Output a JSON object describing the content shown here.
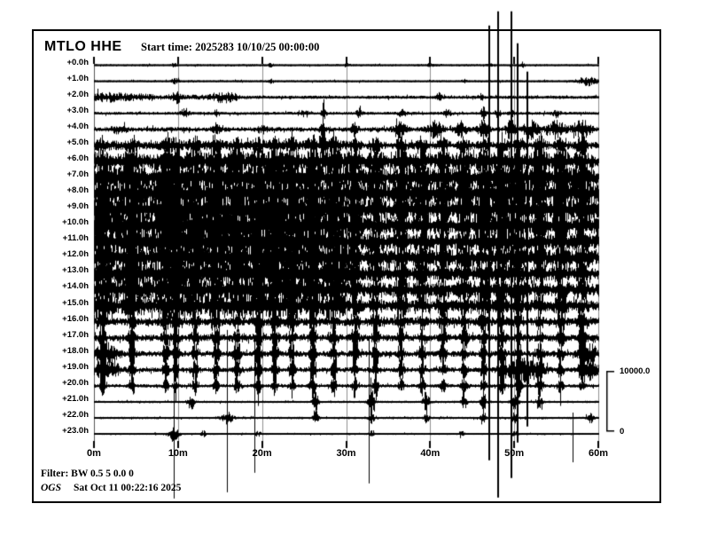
{
  "header": {
    "station": "MTLO HHE",
    "start_time": "Start time: 2025283 10/10/25 00:00:00"
  },
  "footer": {
    "filter": "Filter: BW 0.5 5 0.0 0",
    "agency": "OGS",
    "generated": "Sat Oct 11 00:22:16 2025"
  },
  "scale": {
    "top": "10000.0",
    "bottom": "0"
  },
  "colors": {
    "trace": "#000000",
    "grid": "#8f8f8f",
    "grid_zero": "#555555"
  },
  "chart_data": {
    "type": "line",
    "title": "MTLO HHE helicorder (24 hourly traces)",
    "x_tick_labels": [
      "0m",
      "10m",
      "20m",
      "30m",
      "40m",
      "50m",
      "60m"
    ],
    "x_range_minutes": [
      0,
      60
    ],
    "x_axis_unit": "minutes within hour",
    "y_axis_unit": "hours after start time",
    "row_labels": [
      "+0.0h",
      "+1.0h",
      "+2.0h",
      "+3.0h",
      "+4.0h",
      "+5.0h",
      "+6.0h",
      "+7.0h",
      "+8.0h",
      "+9.0h",
      "+10.0h",
      "+11.0h",
      "+12.0h",
      "+13.0h",
      "+14.0h",
      "+15.0h",
      "+16.0h",
      "+17.0h",
      "+18.0h",
      "+19.0h",
      "+20.0h",
      "+21.0h",
      "+22.0h",
      "+23.0h"
    ],
    "amplitude_scale": {
      "label_top": "10000.0",
      "label_bottom": "0",
      "bracket_counts": 10000
    },
    "noise_seed": 987654321,
    "stripes_left": [
      1,
      4.5,
      8.5,
      9.7,
      12,
      14.5,
      17,
      19.5,
      21.5,
      23.5,
      26,
      28.5
    ],
    "stripes_right": [
      31,
      33.5,
      36.5,
      39,
      41.5,
      44,
      46.3,
      48.5,
      50.5,
      53,
      55.5,
      58
    ],
    "rows": [
      {
        "label": "+0.0h",
        "base": [
          [
            0,
            60,
            0.9
          ]
        ],
        "stripe_amp": 0,
        "stripe_w": 0.4,
        "events": [
          [
            9.5,
            1.5,
            0.3
          ],
          [
            21,
            1.2,
            0.3
          ],
          [
            30,
            1.5,
            0.3
          ],
          [
            40,
            1.2,
            0.3
          ],
          [
            47,
            1.8,
            0.25
          ],
          [
            51,
            1.5,
            0.25
          ]
        ],
        "spikes": []
      },
      {
        "label": "+1.0h",
        "base": [
          [
            0,
            60,
            0.9
          ]
        ],
        "stripe_amp": 0,
        "stripe_w": 0.4,
        "events": [
          [
            9.6,
            2.5,
            0.4
          ],
          [
            21,
            1.5,
            0.3
          ],
          [
            44,
            1.5,
            0.3
          ],
          [
            58.6,
            3.5,
            1.1
          ]
        ],
        "spikes": []
      },
      {
        "label": "+2.0h",
        "base": [
          [
            0,
            7,
            3.2
          ],
          [
            7,
            17,
            2.2
          ],
          [
            17,
            60,
            1.4
          ]
        ],
        "stripe_amp": 0,
        "stripe_w": 0.4,
        "events": [
          [
            1.5,
            1.5,
            2.0
          ],
          [
            9.8,
            3.5,
            0.6
          ],
          [
            15.5,
            3.0,
            1.5
          ],
          [
            41,
            3.5,
            0.3
          ],
          [
            46,
            2.5,
            0.3
          ]
        ],
        "spikes": []
      },
      {
        "label": "+3.0h",
        "base": [
          [
            0,
            60,
            1.3
          ]
        ],
        "stripe_amp": 0,
        "stripe_w": 0.4,
        "events": [
          [
            10.8,
            3.5,
            0.5
          ],
          [
            14.6,
            2.5,
            0.3
          ],
          [
            25,
            2.5,
            0.4
          ],
          [
            27.3,
            6,
            0.25
          ],
          [
            31.5,
            4,
            0.3
          ],
          [
            36.6,
            3,
            0.4
          ],
          [
            42,
            3,
            0.4
          ],
          [
            46.3,
            5,
            0.3
          ],
          [
            48,
            4,
            0.3
          ],
          [
            49.6,
            4,
            0.3
          ],
          [
            55,
            3,
            0.4
          ]
        ],
        "spikes": [
          [
            27.3,
            16,
            4
          ]
        ]
      },
      {
        "label": "+4.0h",
        "base": [
          [
            0,
            60,
            2.0
          ]
        ],
        "stripe_amp": 0,
        "stripe_w": 0.4,
        "events": [
          [
            3,
            3,
            0.8
          ],
          [
            14.5,
            4,
            0.4
          ],
          [
            20,
            3,
            0.5
          ],
          [
            27.2,
            8,
            0.3
          ],
          [
            31,
            5,
            0.4
          ],
          [
            36.4,
            7,
            0.7
          ],
          [
            40.5,
            7,
            0.8
          ],
          [
            43.6,
            6,
            0.7
          ],
          [
            46.3,
            7,
            0.6
          ],
          [
            49.5,
            9,
            0.5
          ],
          [
            52,
            7,
            0.9
          ],
          [
            55,
            7,
            0.9
          ],
          [
            58,
            7,
            1.1
          ]
        ],
        "spikes": [
          [
            27.2,
            30,
            8
          ],
          [
            49.6,
            25,
            6
          ]
        ]
      },
      {
        "label": "+5.0h",
        "base": [
          [
            0,
            30,
            4
          ],
          [
            30,
            60,
            3
          ]
        ],
        "stripe_amp": 5,
        "stripe_w": 0.6,
        "events": [
          [
            27.2,
            10,
            0.4
          ]
        ],
        "spikes": [
          [
            27.2,
            20,
            6
          ]
        ]
      },
      {
        "label": "+6.0h",
        "base": [
          [
            0,
            30,
            7
          ],
          [
            30,
            60,
            6
          ]
        ],
        "stripe_amp": 8,
        "stripe_w": 0.7,
        "events": [],
        "spikes": []
      },
      {
        "label": "+7.0h",
        "base": [
          [
            0,
            30,
            9
          ],
          [
            30,
            60,
            7
          ]
        ],
        "stripe_amp": 9,
        "stripe_w": 0.7,
        "events": [],
        "spikes": []
      },
      {
        "label": "+8.0h",
        "base": [
          [
            0,
            30,
            10
          ],
          [
            30,
            60,
            8
          ]
        ],
        "stripe_amp": 9,
        "stripe_w": 0.7,
        "events": [],
        "spikes": []
      },
      {
        "label": "+9.0h",
        "base": [
          [
            0,
            30,
            11
          ],
          [
            30,
            60,
            7
          ]
        ],
        "stripe_amp": 9,
        "stripe_w": 0.7,
        "events": [],
        "spikes": []
      },
      {
        "label": "+10.0h",
        "base": [
          [
            0,
            30,
            11
          ],
          [
            30,
            60,
            7
          ]
        ],
        "stripe_amp": 8,
        "stripe_w": 0.7,
        "events": [],
        "spikes": []
      },
      {
        "label": "+11.0h",
        "base": [
          [
            0,
            30,
            11
          ],
          [
            30,
            60,
            6
          ]
        ],
        "stripe_amp": 8,
        "stripe_w": 0.7,
        "events": [],
        "spikes": []
      },
      {
        "label": "+12.0h",
        "base": [
          [
            0,
            30,
            10
          ],
          [
            30,
            60,
            6
          ]
        ],
        "stripe_amp": 8,
        "stripe_w": 0.7,
        "events": [],
        "spikes": []
      },
      {
        "label": "+13.0h",
        "base": [
          [
            0,
            30,
            10
          ],
          [
            30,
            60,
            5
          ]
        ],
        "stripe_amp": 8,
        "stripe_w": 0.7,
        "events": [],
        "spikes": []
      },
      {
        "label": "+14.0h",
        "base": [
          [
            0,
            30,
            9
          ],
          [
            30,
            60,
            5
          ]
        ],
        "stripe_amp": 7,
        "stripe_w": 0.7,
        "events": [],
        "spikes": []
      },
      {
        "label": "+15.0h",
        "base": [
          [
            0,
            30,
            8
          ],
          [
            30,
            60,
            4
          ]
        ],
        "stripe_amp": 7,
        "stripe_w": 0.7,
        "events": [],
        "spikes": []
      },
      {
        "label": "+16.0h",
        "base": [
          [
            0,
            60,
            3.5
          ]
        ],
        "stripe_amp": 8,
        "stripe_w": 0.4,
        "events": [],
        "spikes": []
      },
      {
        "label": "+17.0h",
        "base": [
          [
            0,
            60,
            3.0
          ]
        ],
        "stripe_amp": 9,
        "stripe_w": 0.35,
        "events": [],
        "spikes": [
          [
            51.5,
            300,
            100
          ]
        ]
      },
      {
        "label": "+18.0h",
        "base": [
          [
            0,
            60,
            2.5
          ]
        ],
        "stripe_amp": 13,
        "stripe_w": 0.3,
        "events": [
          [
            1.5,
            8,
            1.2
          ],
          [
            58.8,
            8,
            1.0
          ]
        ],
        "spikes": [
          [
            46.95,
            370,
            120
          ],
          [
            47.95,
            386,
            162
          ],
          [
            49.55,
            386,
            140
          ],
          [
            50.35,
            350,
            100
          ]
        ]
      },
      {
        "label": "+19.0h",
        "base": [
          [
            0,
            60,
            2.0
          ]
        ],
        "stripe_amp": 11,
        "stripe_w": 0.3,
        "events": [
          [
            1.5,
            10,
            1.3
          ],
          [
            51,
            9,
            2.2
          ],
          [
            59,
            8,
            1.0
          ]
        ],
        "spikes": [
          [
            9.45,
            60,
            145
          ],
          [
            15.8,
            45,
            138
          ],
          [
            19.1,
            35,
            116
          ],
          [
            32.7,
            35,
            128
          ]
        ]
      },
      {
        "label": "+20.0h",
        "base": [
          [
            0,
            60,
            1.5
          ]
        ],
        "stripe_amp": 8,
        "stripe_w": 0.3,
        "events": [],
        "spikes": []
      },
      {
        "label": "+21.0h",
        "base": [
          [
            0,
            60,
            1.0
          ]
        ],
        "stripe_amp": 0,
        "stripe_w": 0.3,
        "events": [
          [
            11.5,
            6,
            0.4
          ],
          [
            26.3,
            14,
            0.3
          ],
          [
            33,
            12,
            0.35
          ],
          [
            39.5,
            10,
            0.35
          ],
          [
            44,
            7,
            0.3
          ],
          [
            46.3,
            9,
            0.3
          ],
          [
            50,
            10,
            0.4
          ],
          [
            53,
            6,
            0.3
          ]
        ],
        "spikes": []
      },
      {
        "label": "+22.0h",
        "base": [
          [
            0,
            60,
            1.0
          ]
        ],
        "stripe_amp": 0,
        "stripe_w": 0.3,
        "events": [
          [
            15.8,
            5,
            0.7
          ],
          [
            26.3,
            7,
            0.3
          ],
          [
            33,
            5,
            0.3
          ],
          [
            39.5,
            5,
            0.3
          ],
          [
            46.3,
            5,
            0.3
          ],
          [
            50,
            6,
            0.3
          ],
          [
            59,
            4,
            0.4
          ]
        ],
        "spikes": [
          [
            56.9,
            6,
            50
          ]
        ]
      },
      {
        "label": "+23.0h",
        "base": [
          [
            0,
            60,
            0.8
          ]
        ],
        "stripe_amp": 0,
        "stripe_w": 0.3,
        "events": [
          [
            9.45,
            6,
            0.6
          ],
          [
            13,
            2.5,
            0.3
          ],
          [
            19.5,
            2,
            0.3
          ],
          [
            33,
            2.5,
            0.3
          ],
          [
            43.7,
            2.5,
            0.3
          ],
          [
            50,
            2.5,
            0.3
          ]
        ],
        "spikes": [
          [
            9.45,
            25,
            72
          ]
        ]
      }
    ]
  }
}
